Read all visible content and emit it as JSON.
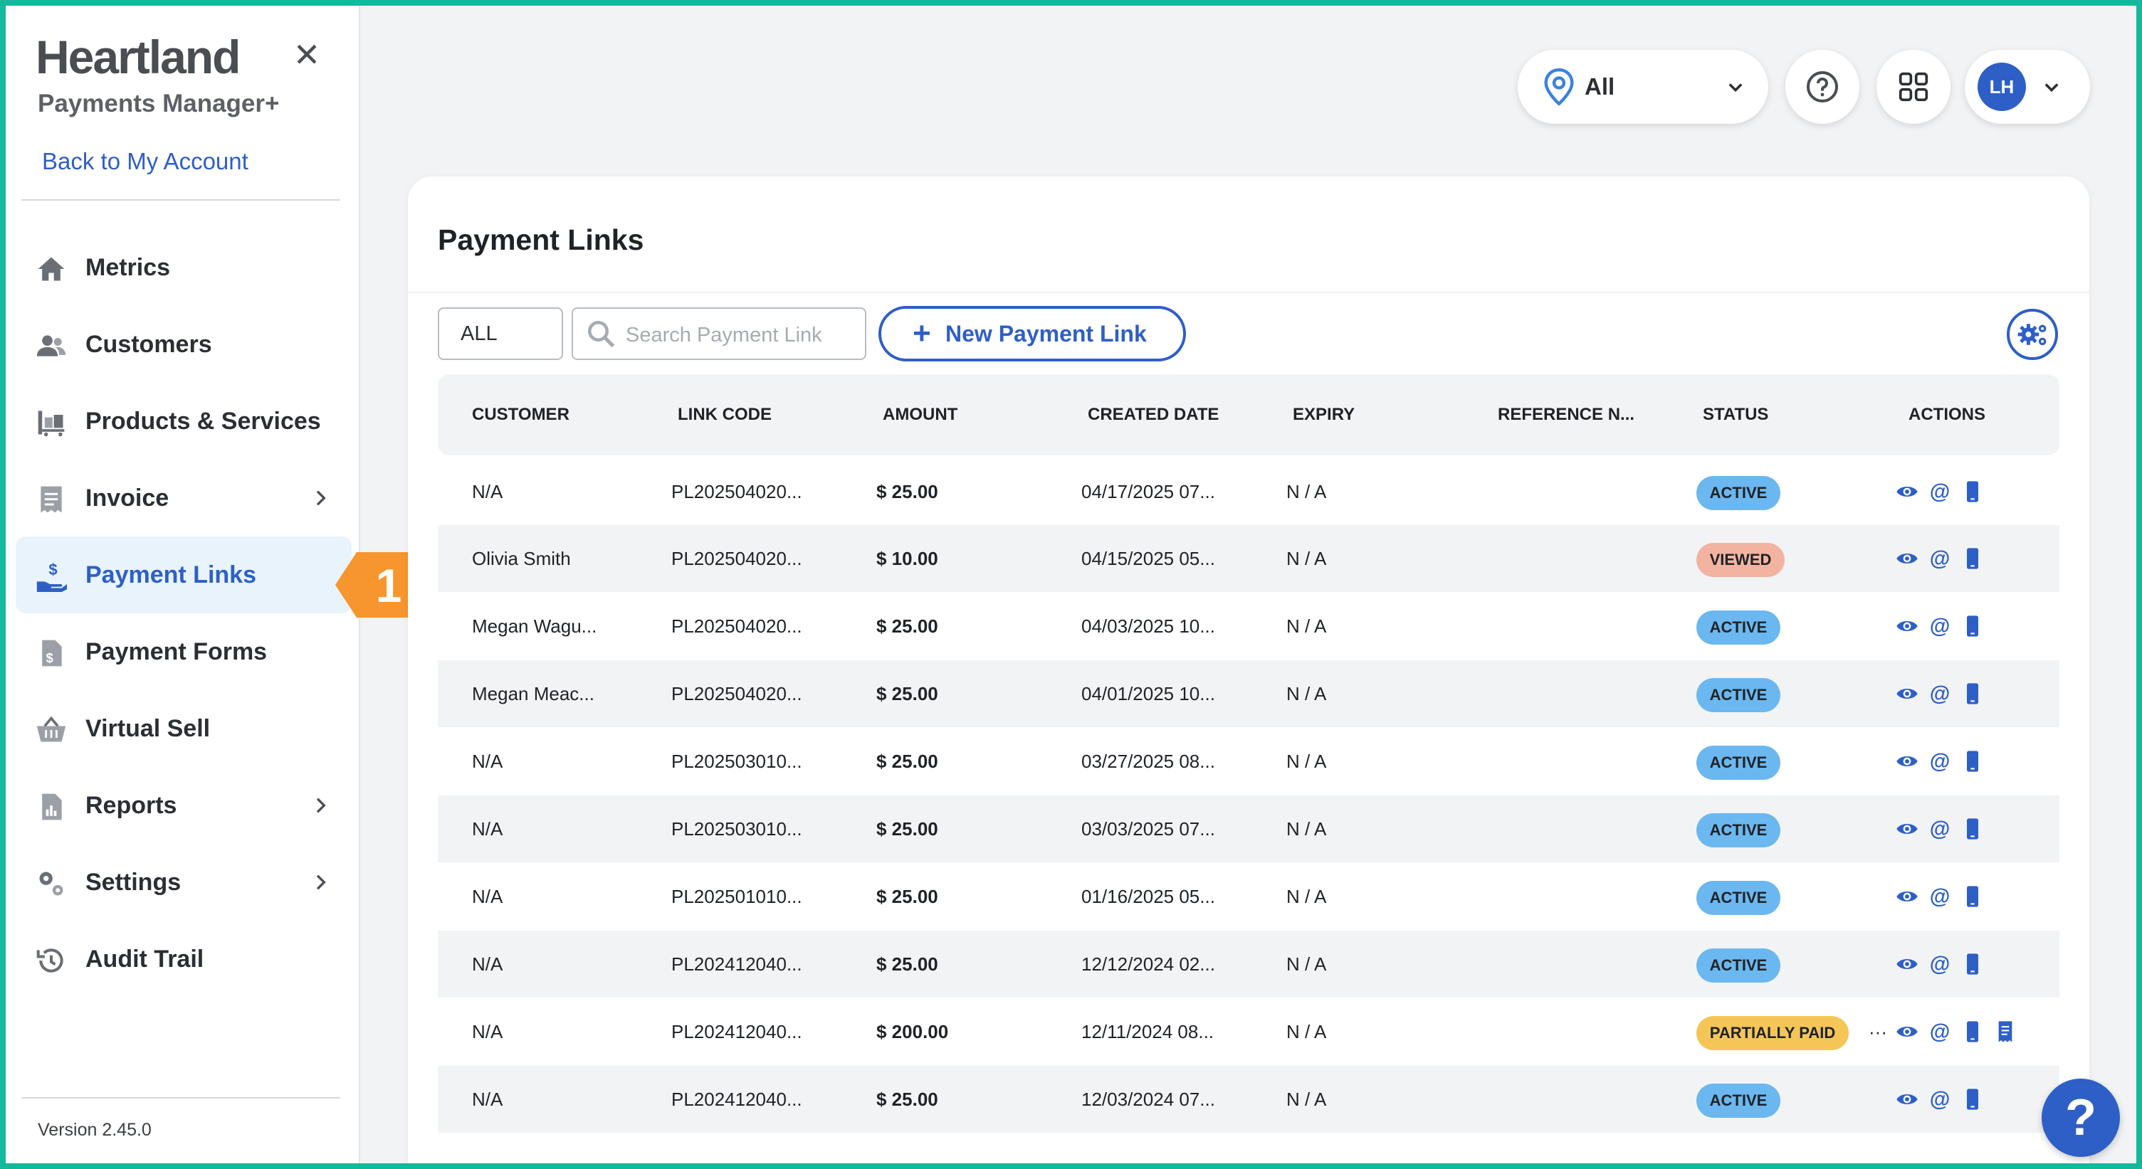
{
  "colors": {
    "accent": "#2e5fc7",
    "border": "#14b89c",
    "callout": "#f7952e",
    "active": "#6bb7ef",
    "viewed": "#f2b4a1",
    "partial": "#f5c657"
  },
  "sidebar": {
    "brand": "Heartland",
    "subtitle": "Payments Manager+",
    "close_icon": "close-icon",
    "back_link": "Back to My Account",
    "items": [
      {
        "label": "Metrics",
        "icon": "home-icon"
      },
      {
        "label": "Customers",
        "icon": "users-icon"
      },
      {
        "label": "Products & Services",
        "icon": "products-icon"
      },
      {
        "label": "Invoice",
        "icon": "invoice-icon"
      },
      {
        "label": "Payment Links",
        "icon": "payment-links-icon"
      },
      {
        "label": "Payment Forms",
        "icon": "payment-forms-icon"
      },
      {
        "label": "Virtual Sell",
        "icon": "basket-icon"
      },
      {
        "label": "Reports",
        "icon": "reports-icon"
      },
      {
        "label": "Settings",
        "icon": "gears-icon"
      },
      {
        "label": "Audit Trail",
        "icon": "history-icon"
      }
    ],
    "version": "Version 2.45.0"
  },
  "callout": {
    "number": "1"
  },
  "topbar": {
    "location": "All",
    "avatar_initials": "LH"
  },
  "main": {
    "title": "Payment Links",
    "filter_value": "ALL",
    "search_placeholder": "Search Payment Link",
    "new_button": "New Payment Link",
    "new_button_plus": "+",
    "columns": [
      "CUSTOMER",
      "LINK CODE",
      "AMOUNT",
      "CREATED DATE",
      "EXPIRY",
      "REFERENCE N...",
      "STATUS",
      "ACTIONS"
    ],
    "rows": [
      {
        "customer": "N/A",
        "code": "PL202504020...",
        "amount": "$ 25.00",
        "created": "04/17/2025 07...",
        "expiry": "N / A",
        "reference": "",
        "status": "ACTIVE"
      },
      {
        "customer": "Olivia Smith",
        "code": "PL202504020...",
        "amount": "$ 10.00",
        "created": "04/15/2025 05...",
        "expiry": "N / A",
        "reference": "",
        "status": "VIEWED"
      },
      {
        "customer": "Megan Wagu...",
        "code": "PL202504020...",
        "amount": "$ 25.00",
        "created": "04/03/2025 10...",
        "expiry": "N / A",
        "reference": "",
        "status": "ACTIVE"
      },
      {
        "customer": "Megan Meac...",
        "code": "PL202504020...",
        "amount": "$ 25.00",
        "created": "04/01/2025 10...",
        "expiry": "N / A",
        "reference": "",
        "status": "ACTIVE"
      },
      {
        "customer": "N/A",
        "code": "PL202503010...",
        "amount": "$ 25.00",
        "created": "03/27/2025 08...",
        "expiry": "N / A",
        "reference": "",
        "status": "ACTIVE"
      },
      {
        "customer": "N/A",
        "code": "PL202503010...",
        "amount": "$ 25.00",
        "created": "03/03/2025 07...",
        "expiry": "N / A",
        "reference": "",
        "status": "ACTIVE"
      },
      {
        "customer": "N/A",
        "code": "PL202501010...",
        "amount": "$ 25.00",
        "created": "01/16/2025 05...",
        "expiry": "N / A",
        "reference": "",
        "status": "ACTIVE"
      },
      {
        "customer": "N/A",
        "code": "PL202412040...",
        "amount": "$ 25.00",
        "created": "12/12/2024 02...",
        "expiry": "N / A",
        "reference": "",
        "status": "ACTIVE"
      },
      {
        "customer": "N/A",
        "code": "PL202412040...",
        "amount": "$ 200.00",
        "created": "12/11/2024 08...",
        "expiry": "N / A",
        "reference": "",
        "status": "PARTIALLY PAID",
        "status_more": "···"
      },
      {
        "customer": "N/A",
        "code": "PL202412040...",
        "amount": "$ 25.00",
        "created": "12/03/2024 07...",
        "expiry": "N / A",
        "reference": "",
        "status": "ACTIVE"
      }
    ]
  },
  "help": {
    "label": "?"
  }
}
